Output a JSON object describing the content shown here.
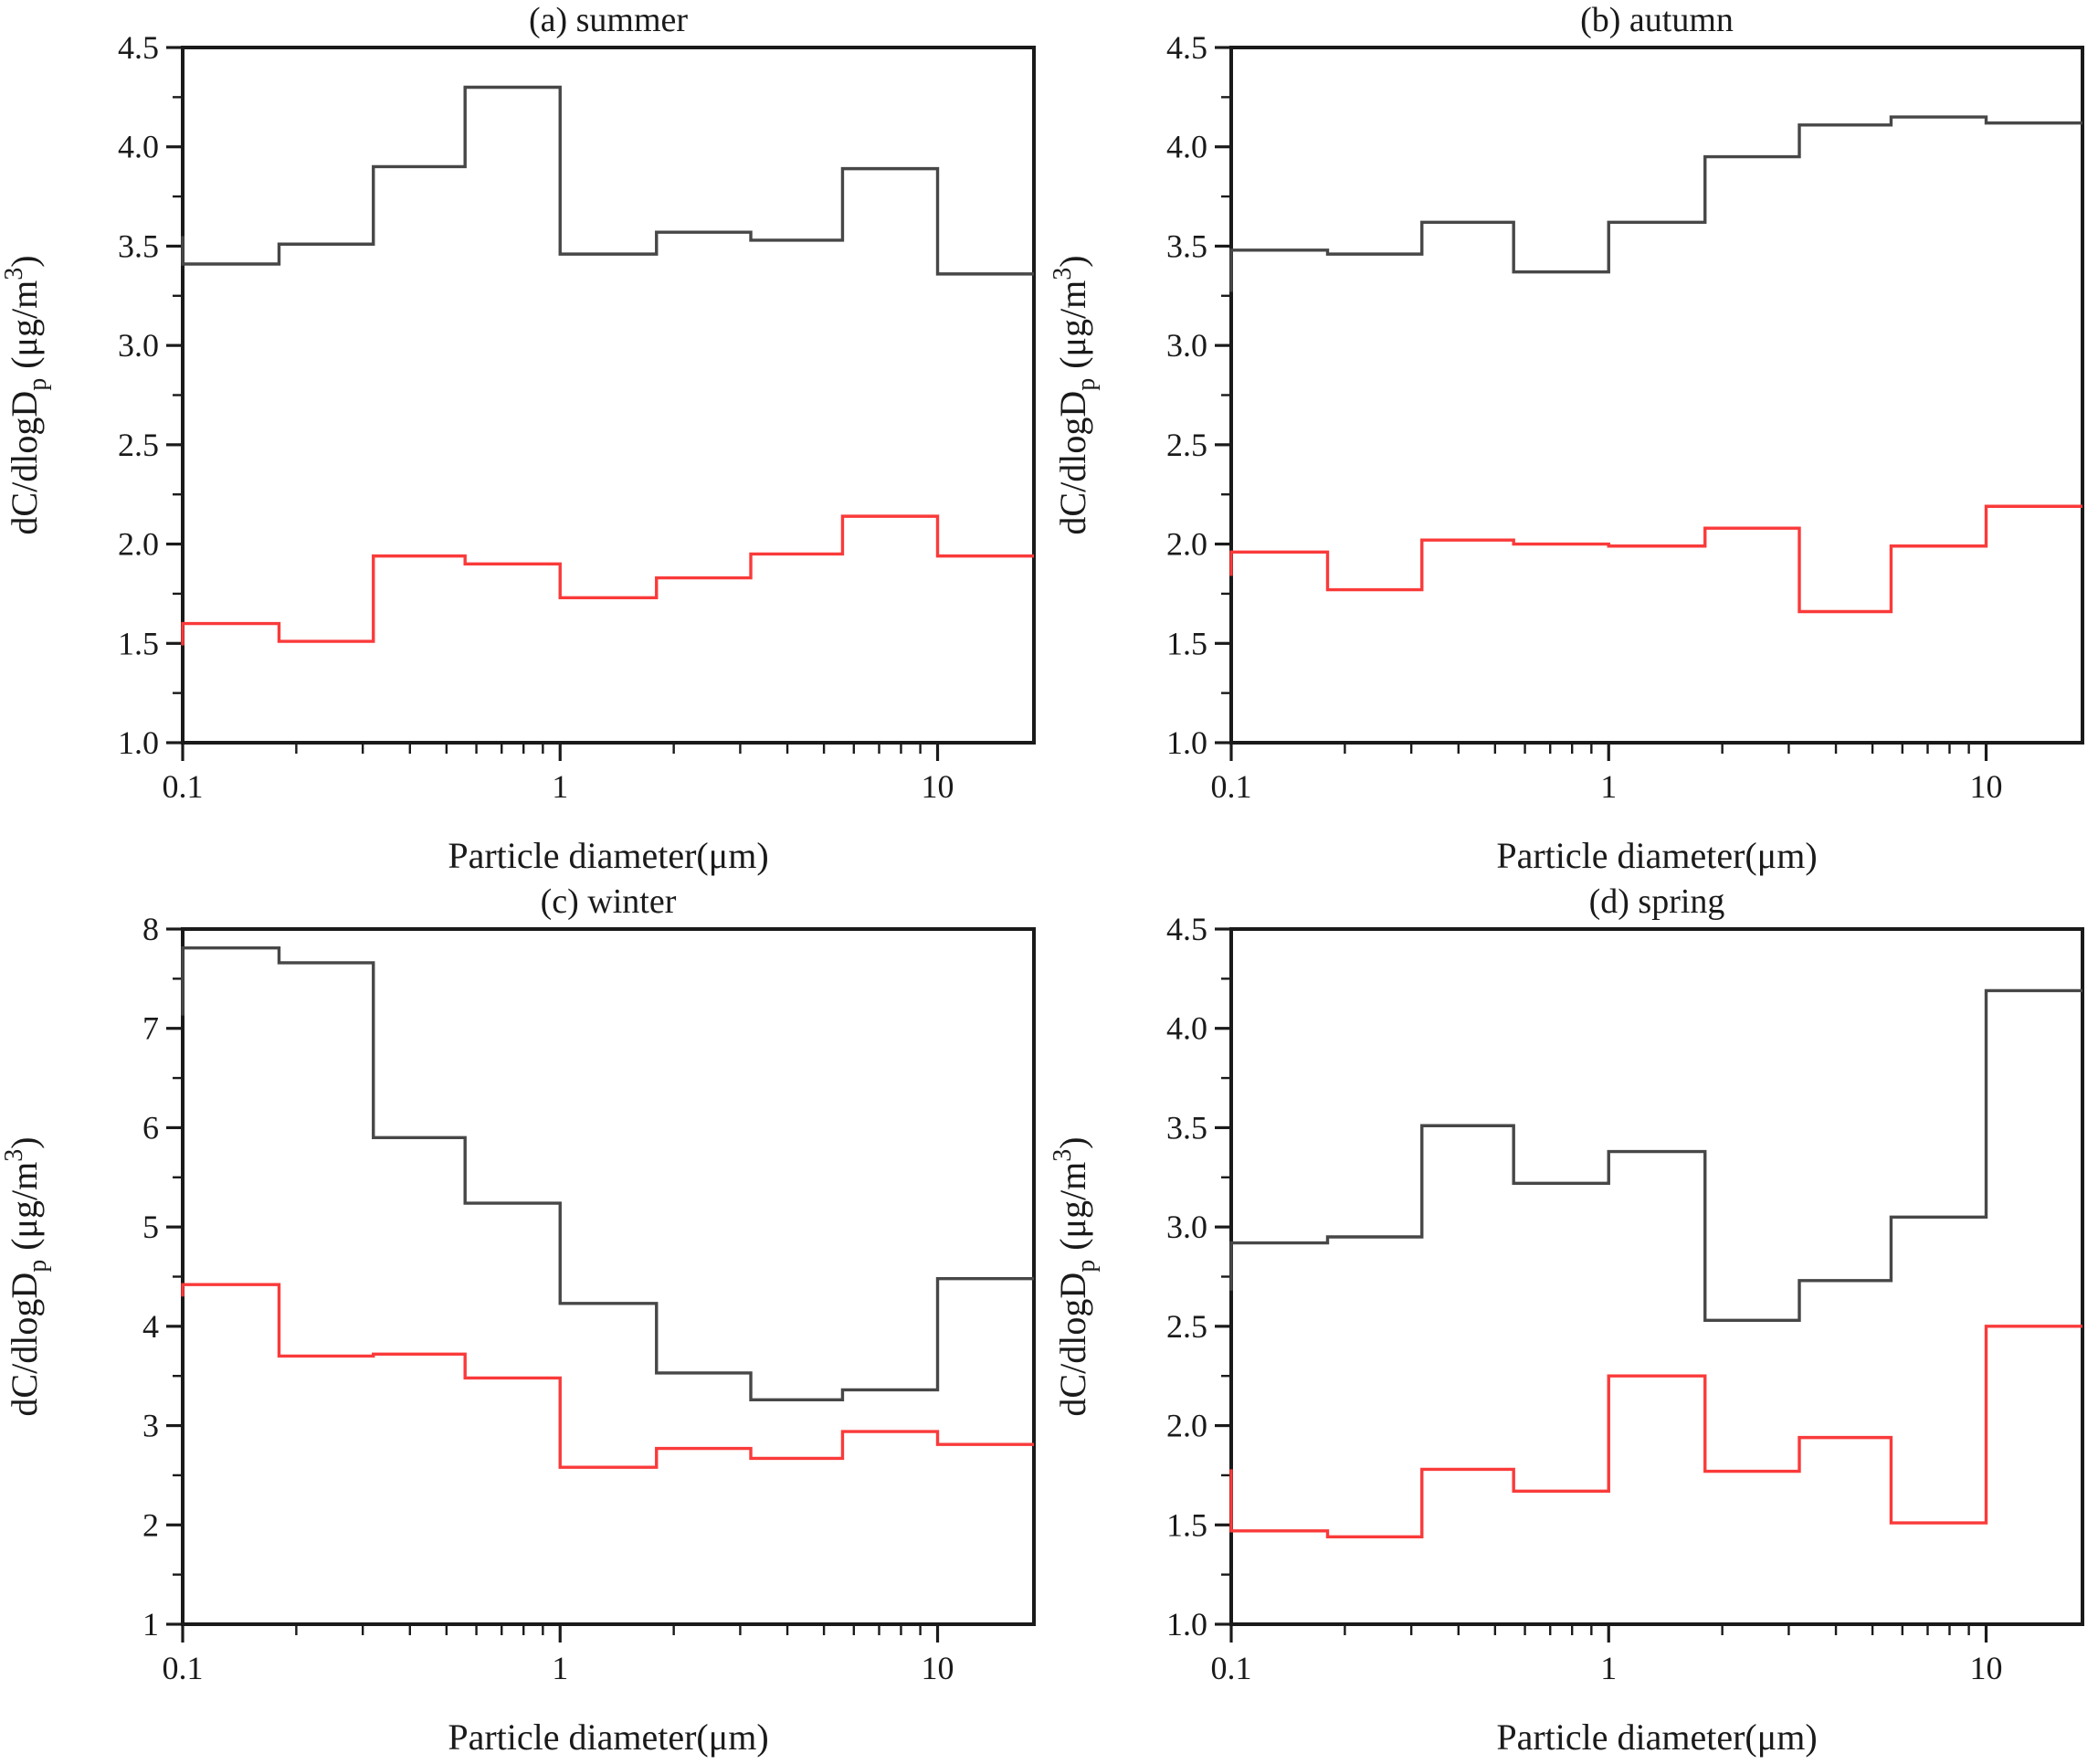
{
  "figure": {
    "description": "2x2 grid of seasonal particle size distribution step-line charts",
    "colors": {
      "black_series": "#474747",
      "red_series": "#fa3a3a",
      "axis": "#1a1a1a",
      "background": "#ffffff"
    }
  },
  "shared": {
    "xlabel": "Particle diameter(μm)",
    "ylabel_text": "dC/dlogDp (μg/m3)",
    "ylabel_segments": [
      {
        "t": "dC/dlogD",
        "s": "n"
      },
      {
        "t": "p",
        "s": "sub"
      },
      {
        "t": " (μg/m",
        "s": "n"
      },
      {
        "t": "3",
        "s": "sup"
      },
      {
        "t": ")",
        "s": "n"
      }
    ],
    "bin_edges": [
      0.1,
      0.18,
      0.32,
      0.56,
      1,
      1.8,
      3.2,
      5.6,
      10,
      18
    ],
    "x_major_ticks": [
      0.1,
      1,
      10
    ],
    "x_major_labels": [
      "0.1",
      "1",
      "10"
    ],
    "x_minor_ticks": [
      0.2,
      0.3,
      0.4,
      0.5,
      0.6,
      0.7,
      0.8,
      0.9,
      2,
      3,
      4,
      5,
      6,
      7,
      8,
      9
    ],
    "xscale": "log",
    "xlim": [
      0.1,
      18
    ]
  },
  "chart_data": [
    {
      "type": "line",
      "subtype": "step",
      "panel": "a",
      "title": "(a) summer",
      "xlabel": "Particle diameter(μm)",
      "ylabel": "dC/dlogDp (μg/m3)",
      "xlim": [
        0.1,
        18
      ],
      "ylim": [
        1.0,
        4.5
      ],
      "ytick_interval": 0.5,
      "yminor_interval": 0.25,
      "ytick_decimals": 1,
      "grid": false,
      "legend": "none",
      "bin_edges": [
        0.1,
        0.18,
        0.32,
        0.56,
        1,
        1.8,
        3.2,
        5.6,
        10,
        18
      ],
      "series": [
        {
          "name": "black",
          "color": "#474747",
          "lead": 3.55,
          "values": [
            3.41,
            3.51,
            3.9,
            4.3,
            3.46,
            3.57,
            3.53,
            3.89,
            3.36
          ]
        },
        {
          "name": "red",
          "color": "#fa3a3a",
          "lead": 1.49,
          "values": [
            1.6,
            1.51,
            1.94,
            1.9,
            1.73,
            1.83,
            1.95,
            2.14,
            1.94
          ]
        }
      ]
    },
    {
      "type": "line",
      "subtype": "step",
      "panel": "b",
      "title": "(b) autumn",
      "xlabel": "Particle diameter(μm)",
      "ylabel": "dC/dlogDp (μg/m3)",
      "xlim": [
        0.1,
        18
      ],
      "ylim": [
        1.0,
        4.5
      ],
      "ytick_interval": 0.5,
      "yminor_interval": 0.25,
      "ytick_decimals": 1,
      "grid": false,
      "legend": "none",
      "bin_edges": [
        0.1,
        0.18,
        0.32,
        0.56,
        1,
        1.8,
        3.2,
        5.6,
        10,
        18
      ],
      "series": [
        {
          "name": "black",
          "color": "#474747",
          "lead": 3.27,
          "values": [
            3.48,
            3.46,
            3.62,
            3.37,
            3.62,
            3.95,
            4.11,
            4.15,
            4.12
          ]
        },
        {
          "name": "red",
          "color": "#fa3a3a",
          "lead": 1.84,
          "values": [
            1.96,
            1.77,
            2.02,
            2.0,
            1.99,
            2.08,
            1.66,
            1.99,
            2.19
          ]
        }
      ]
    },
    {
      "type": "line",
      "subtype": "step",
      "panel": "c",
      "title": "(c) winter",
      "xlabel": "Particle diameter(μm)",
      "ylabel": "dC/dlogDp (μg/m3)",
      "xlim": [
        0.1,
        18
      ],
      "ylim": [
        1,
        8
      ],
      "ytick_interval": 1,
      "yminor_interval": 0.5,
      "ytick_decimals": 0,
      "grid": false,
      "legend": "none",
      "bin_edges": [
        0.1,
        0.18,
        0.32,
        0.56,
        1,
        1.8,
        3.2,
        5.6,
        10,
        18
      ],
      "series": [
        {
          "name": "black",
          "color": "#474747",
          "lead": 7.13,
          "values": [
            7.81,
            7.66,
            5.9,
            5.24,
            4.23,
            3.53,
            3.26,
            3.36,
            4.48
          ]
        },
        {
          "name": "red",
          "color": "#fa3a3a",
          "lead": 4.3,
          "values": [
            4.42,
            3.7,
            3.72,
            3.48,
            2.58,
            2.77,
            2.67,
            2.94,
            2.81
          ]
        }
      ]
    },
    {
      "type": "line",
      "subtype": "step",
      "panel": "d",
      "title": "(d) spring",
      "xlabel": "Particle diameter(μm)",
      "ylabel": "dC/dlogDp (μg/m3)",
      "xlim": [
        0.1,
        18
      ],
      "ylim": [
        1.0,
        4.5
      ],
      "ytick_interval": 0.5,
      "yminor_interval": 0.25,
      "ytick_decimals": 1,
      "grid": false,
      "legend": "none",
      "bin_edges": [
        0.1,
        0.18,
        0.32,
        0.56,
        1,
        1.8,
        3.2,
        5.6,
        10,
        18
      ],
      "series": [
        {
          "name": "black",
          "color": "#474747",
          "lead": 2.68,
          "values": [
            2.92,
            2.95,
            3.51,
            3.22,
            3.38,
            2.53,
            2.73,
            3.05,
            4.19
          ]
        },
        {
          "name": "red",
          "color": "#fa3a3a",
          "lead": 1.78,
          "values": [
            1.47,
            1.44,
            1.78,
            1.67,
            2.25,
            1.77,
            1.94,
            1.51,
            2.5
          ]
        }
      ]
    }
  ]
}
